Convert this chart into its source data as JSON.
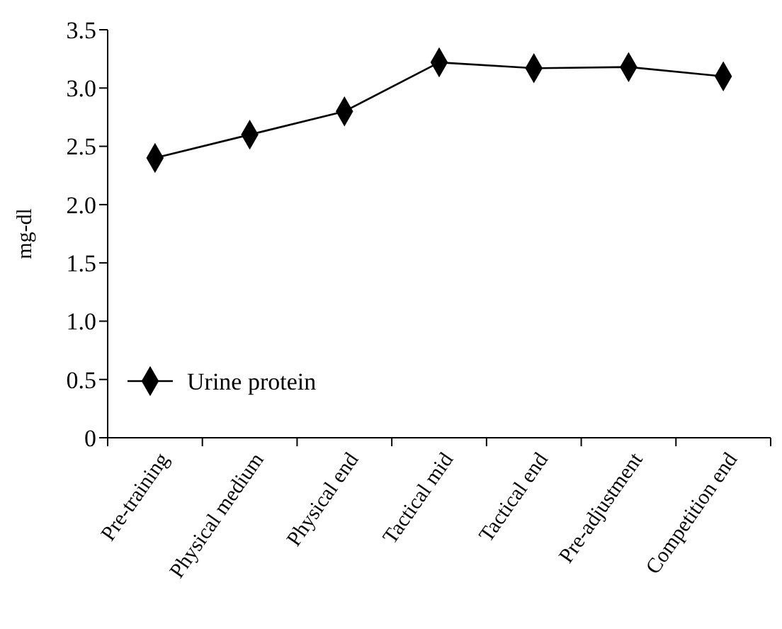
{
  "chart_data": {
    "type": "line",
    "ylabel": "mg-dl",
    "categories": [
      "Pre-training",
      "Physical medium",
      "Physical end",
      "Tactical mid",
      "Tactical end",
      "Pre-adjustment",
      "Competition end"
    ],
    "series": [
      {
        "name": "Urine protein",
        "color": "#000000",
        "values": [
          2.4,
          2.6,
          2.8,
          3.22,
          3.17,
          3.18,
          3.1
        ]
      }
    ],
    "ylim": [
      0,
      3.5
    ],
    "yticks": [
      0,
      {
        "value": 0.5,
        "label": "0.5"
      },
      {
        "value": 1,
        "label": "1.0"
      },
      {
        "value": 1.5,
        "label": "1.5"
      },
      {
        "value": 2,
        "label": "2.0"
      },
      {
        "value": 2.5,
        "label": "2.5"
      },
      {
        "value": 3,
        "label": "3.0"
      },
      {
        "value": 3.5,
        "label": "3.5"
      }
    ],
    "marker": "diamond",
    "legend": "bottom left",
    "grid": false
  }
}
